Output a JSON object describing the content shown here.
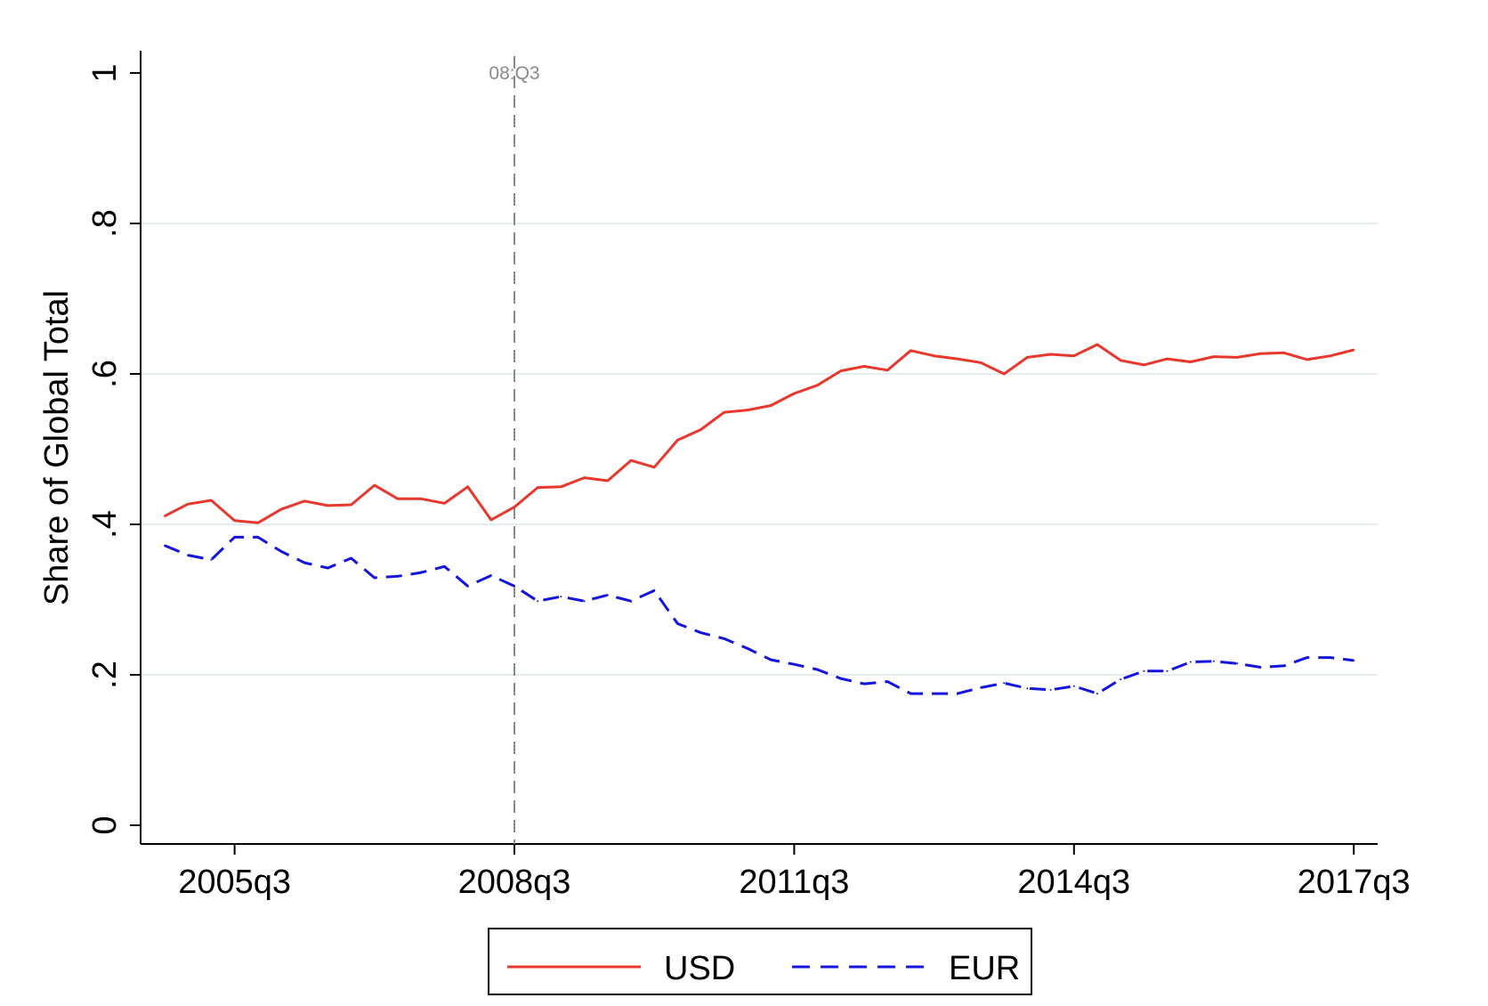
{
  "chart_data": {
    "type": "line",
    "title": "",
    "xlabel": "",
    "ylabel": "Share of Global Total",
    "x_start": "2004q4",
    "x_ticks": [
      "2005q3",
      "2008q3",
      "2011q3",
      "2014q3",
      "2017q3"
    ],
    "y_ticks": [
      "0",
      ".2",
      ".4",
      ".6",
      ".8",
      "1"
    ],
    "ylim": [
      0,
      1
    ],
    "grid": true,
    "legend_position": "bottom",
    "annotation": {
      "label": "08:Q3",
      "x": "2008q3"
    },
    "series": [
      {
        "name": "USD",
        "color": "#e8372c",
        "style": "solid",
        "values": [
          0.411,
          0.427,
          0.432,
          0.405,
          0.402,
          0.42,
          0.431,
          0.425,
          0.426,
          0.452,
          0.434,
          0.434,
          0.428,
          0.45,
          0.406,
          0.423,
          0.449,
          0.45,
          0.462,
          0.458,
          0.485,
          0.476,
          0.512,
          0.526,
          0.549,
          0.552,
          0.558,
          0.574,
          0.585,
          0.604,
          0.61,
          0.605,
          0.631,
          0.624,
          0.62,
          0.615,
          0.6,
          0.622,
          0.626,
          0.624,
          0.639,
          0.618,
          0.612,
          0.62,
          0.616,
          0.623,
          0.622,
          0.627,
          0.628,
          0.619,
          0.624,
          0.632
        ]
      },
      {
        "name": "EUR",
        "color": "#1414e0",
        "style": "dashed",
        "values": [
          0.372,
          0.359,
          0.353,
          0.383,
          0.383,
          0.364,
          0.349,
          0.342,
          0.355,
          0.329,
          0.331,
          0.336,
          0.344,
          0.318,
          0.332,
          0.318,
          0.298,
          0.304,
          0.298,
          0.306,
          0.298,
          0.312,
          0.268,
          0.256,
          0.248,
          0.235,
          0.22,
          0.214,
          0.207,
          0.195,
          0.188,
          0.191,
          0.175,
          0.175,
          0.175,
          0.183,
          0.189,
          0.182,
          0.18,
          0.185,
          0.175,
          0.194,
          0.205,
          0.205,
          0.217,
          0.218,
          0.215,
          0.21,
          0.212,
          0.223,
          0.223,
          0.219
        ]
      }
    ]
  }
}
